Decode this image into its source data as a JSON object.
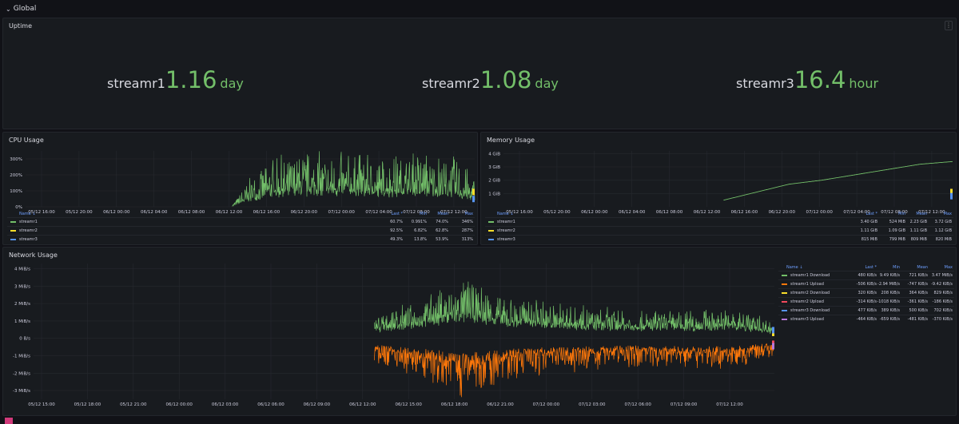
{
  "row": {
    "chevron": "⌄",
    "title": "Global"
  },
  "uptime": {
    "title": "Uptime",
    "menu_icon": "⋮",
    "stats": [
      {
        "name": "streamr1",
        "value": "1.16",
        "unit": "day"
      },
      {
        "name": "streamr2",
        "value": "1.08",
        "unit": "day"
      },
      {
        "name": "streamr3",
        "value": "16.4",
        "unit": "hour"
      }
    ]
  },
  "cpu": {
    "title": "CPU Usage",
    "y_ticks": [
      "300%",
      "200%",
      "100%",
      "0%"
    ],
    "x_ticks": [
      "05/12 16:00",
      "05/12 20:00",
      "06/12 00:00",
      "06/12 04:00",
      "06/12 08:00",
      "06/12 12:00",
      "06/12 16:00",
      "06/12 20:00",
      "07/12 00:00",
      "07/12 04:00",
      "07/12 08:00",
      "07/12 12:00"
    ],
    "legend": {
      "headers": [
        "Name ↓",
        "Last *",
        "Min",
        "Mean",
        "Max"
      ],
      "rows": [
        {
          "name": "streamr1",
          "color": "#73bf69",
          "last": "60.7%",
          "min": "0.991%",
          "mean": "74.0%",
          "max": "346%"
        },
        {
          "name": "streamr2",
          "color": "#fade2a",
          "last": "92.5%",
          "min": "6.82%",
          "mean": "62.8%",
          "max": "287%"
        },
        {
          "name": "streamr3",
          "color": "#5794f2",
          "last": "49.3%",
          "min": "13.8%",
          "mean": "53.9%",
          "max": "313%"
        }
      ]
    }
  },
  "mem": {
    "title": "Memory Usage",
    "y_ticks": [
      "4 GiB",
      "3 GiB",
      "2 GiB",
      "1 GiB"
    ],
    "x_ticks": [
      "05/12 16:00",
      "05/12 20:00",
      "06/12 00:00",
      "06/12 04:00",
      "06/12 08:00",
      "06/12 12:00",
      "06/12 16:00",
      "06/12 20:00",
      "07/12 00:00",
      "07/12 04:00",
      "07/12 08:00",
      "07/12 12:00"
    ],
    "legend": {
      "headers": [
        "Name ↓",
        "Last *",
        "Min",
        "Mean",
        "Max"
      ],
      "rows": [
        {
          "name": "streamr1",
          "color": "#73bf69",
          "last": "3.40 GiB",
          "min": "524 MiB",
          "mean": "2.23 GiB",
          "max": "3.72 GiB"
        },
        {
          "name": "streamr2",
          "color": "#fade2a",
          "last": "1.11 GiB",
          "min": "1.09 GiB",
          "mean": "1.11 GiB",
          "max": "1.12 GiB"
        },
        {
          "name": "streamr3",
          "color": "#5794f2",
          "last": "815 MiB",
          "min": "799 MiB",
          "mean": "809 MiB",
          "max": "820 MiB"
        }
      ]
    }
  },
  "net": {
    "title": "Network Usage",
    "y_ticks": [
      "4 MiB/s",
      "3 MiB/s",
      "2 MiB/s",
      "1 MiB/s",
      "0 B/s",
      "-1 MiB/s",
      "-2 MiB/s",
      "-3 MiB/s"
    ],
    "x_ticks": [
      "05/12 15:00",
      "05/12 18:00",
      "05/12 21:00",
      "06/12 00:00",
      "06/12 03:00",
      "06/12 06:00",
      "06/12 09:00",
      "06/12 12:00",
      "06/12 15:00",
      "06/12 18:00",
      "06/12 21:00",
      "07/12 00:00",
      "07/12 03:00",
      "07/12 06:00",
      "07/12 09:00",
      "07/12 12:00"
    ],
    "legend": {
      "headers": [
        "Name ↓",
        "Last *",
        "Min",
        "Mean",
        "Max"
      ],
      "rows": [
        {
          "name": "streamr1 Download",
          "color": "#73bf69",
          "last": "480 KiB/s",
          "min": "9.49 KiB/s",
          "mean": "721 KiB/s",
          "max": "3.47 MiB/s"
        },
        {
          "name": "streamr1 Upload",
          "color": "#ff780a",
          "last": "-506 KiB/s",
          "min": "-2.94 MiB/s",
          "mean": "-747 KiB/s",
          "max": "-9.42 KiB/s"
        },
        {
          "name": "streamr2 Download",
          "color": "#fade2a",
          "last": "320 KiB/s",
          "min": "208 KiB/s",
          "mean": "364 KiB/s",
          "max": "829 KiB/s"
        },
        {
          "name": "streamr2 Upload",
          "color": "#f2495c",
          "last": "-314 KiB/s",
          "min": "-1018 KiB/s",
          "mean": "-361 KiB/s",
          "max": "-186 KiB/s"
        },
        {
          "name": "streamr3 Download",
          "color": "#5794f2",
          "last": "477 KiB/s",
          "min": "389 KiB/s",
          "mean": "500 KiB/s",
          "max": "702 KiB/s"
        },
        {
          "name": "streamr3 Upload",
          "color": "#b877d9",
          "last": "-464 KiB/s",
          "min": "-659 KiB/s",
          "mean": "-481 KiB/s",
          "max": "-370 KiB/s"
        }
      ]
    }
  },
  "chart_data": [
    {
      "type": "line",
      "title": "CPU Usage",
      "ylim": [
        0,
        350
      ],
      "x": [
        "06/12 12:00",
        "06/12 14:00",
        "06/12 16:00",
        "06/12 18:00",
        "06/12 20:00",
        "06/12 22:00",
        "07/12 00:00",
        "07/12 02:00",
        "07/12 04:00",
        "07/12 06:00",
        "07/12 08:00",
        "07/12 10:00",
        "07/12 12:00",
        "07/12 14:00"
      ],
      "series": [
        {
          "name": "streamr1",
          "color": "#73bf69",
          "values": [
            5,
            60,
            95,
            105,
            110,
            110,
            105,
            110,
            100,
            105,
            110,
            105,
            100,
            61
          ]
        },
        {
          "name": "streamr2",
          "color": "#fade2a",
          "values": [
            null,
            null,
            null,
            null,
            null,
            null,
            null,
            null,
            null,
            null,
            null,
            null,
            null,
            93
          ]
        },
        {
          "name": "streamr3",
          "color": "#5794f2",
          "values": [
            null,
            null,
            null,
            null,
            null,
            null,
            null,
            null,
            null,
            null,
            null,
            null,
            null,
            49
          ]
        }
      ]
    },
    {
      "type": "line",
      "title": "Memory Usage",
      "ylim": [
        0,
        4
      ],
      "x": [
        "06/12 12:00",
        "06/12 16:00",
        "06/12 20:00",
        "07/12 00:00",
        "07/12 04:00",
        "07/12 08:00",
        "07/12 12:00",
        "07/12 14:00"
      ],
      "series": [
        {
          "name": "streamr1",
          "color": "#73bf69",
          "values": [
            0.5,
            1.1,
            1.7,
            2.0,
            2.4,
            2.8,
            3.2,
            3.4
          ]
        },
        {
          "name": "streamr2",
          "color": "#fade2a",
          "values": [
            null,
            null,
            null,
            null,
            null,
            null,
            null,
            1.11
          ]
        },
        {
          "name": "streamr3",
          "color": "#5794f2",
          "values": [
            null,
            null,
            null,
            null,
            null,
            null,
            null,
            0.8
          ]
        }
      ]
    },
    {
      "type": "line",
      "title": "Network Usage",
      "ylim": [
        -3.5,
        4
      ],
      "x": [
        "06/12 12:00",
        "06/12 15:00",
        "06/12 18:00",
        "06/12 21:00",
        "07/12 00:00",
        "07/12 03:00",
        "07/12 06:00",
        "07/12 09:00",
        "07/12 12:00",
        "07/12 14:00"
      ],
      "series": [
        {
          "name": "streamr1 Download",
          "color": "#73bf69",
          "values": [
            0.6,
            1.0,
            1.6,
            1.1,
            0.9,
            0.8,
            0.7,
            0.7,
            0.8,
            0.47
          ]
        },
        {
          "name": "streamr1 Upload",
          "color": "#ff780a",
          "values": [
            -0.6,
            -1.0,
            -1.5,
            -1.1,
            -0.9,
            -0.8,
            -0.7,
            -0.8,
            -0.8,
            -0.49
          ]
        },
        {
          "name": "streamr2 Download",
          "color": "#fade2a",
          "values": [
            null,
            null,
            null,
            null,
            null,
            null,
            null,
            null,
            null,
            0.31
          ]
        },
        {
          "name": "streamr2 Upload",
          "color": "#f2495c",
          "values": [
            null,
            null,
            null,
            null,
            null,
            null,
            null,
            null,
            null,
            -0.31
          ]
        },
        {
          "name": "streamr3 Download",
          "color": "#5794f2",
          "values": [
            null,
            null,
            null,
            null,
            null,
            null,
            null,
            null,
            null,
            0.47
          ]
        },
        {
          "name": "streamr3 Upload",
          "color": "#b877d9",
          "values": [
            null,
            null,
            null,
            null,
            null,
            null,
            null,
            null,
            null,
            -0.45
          ]
        }
      ]
    }
  ]
}
